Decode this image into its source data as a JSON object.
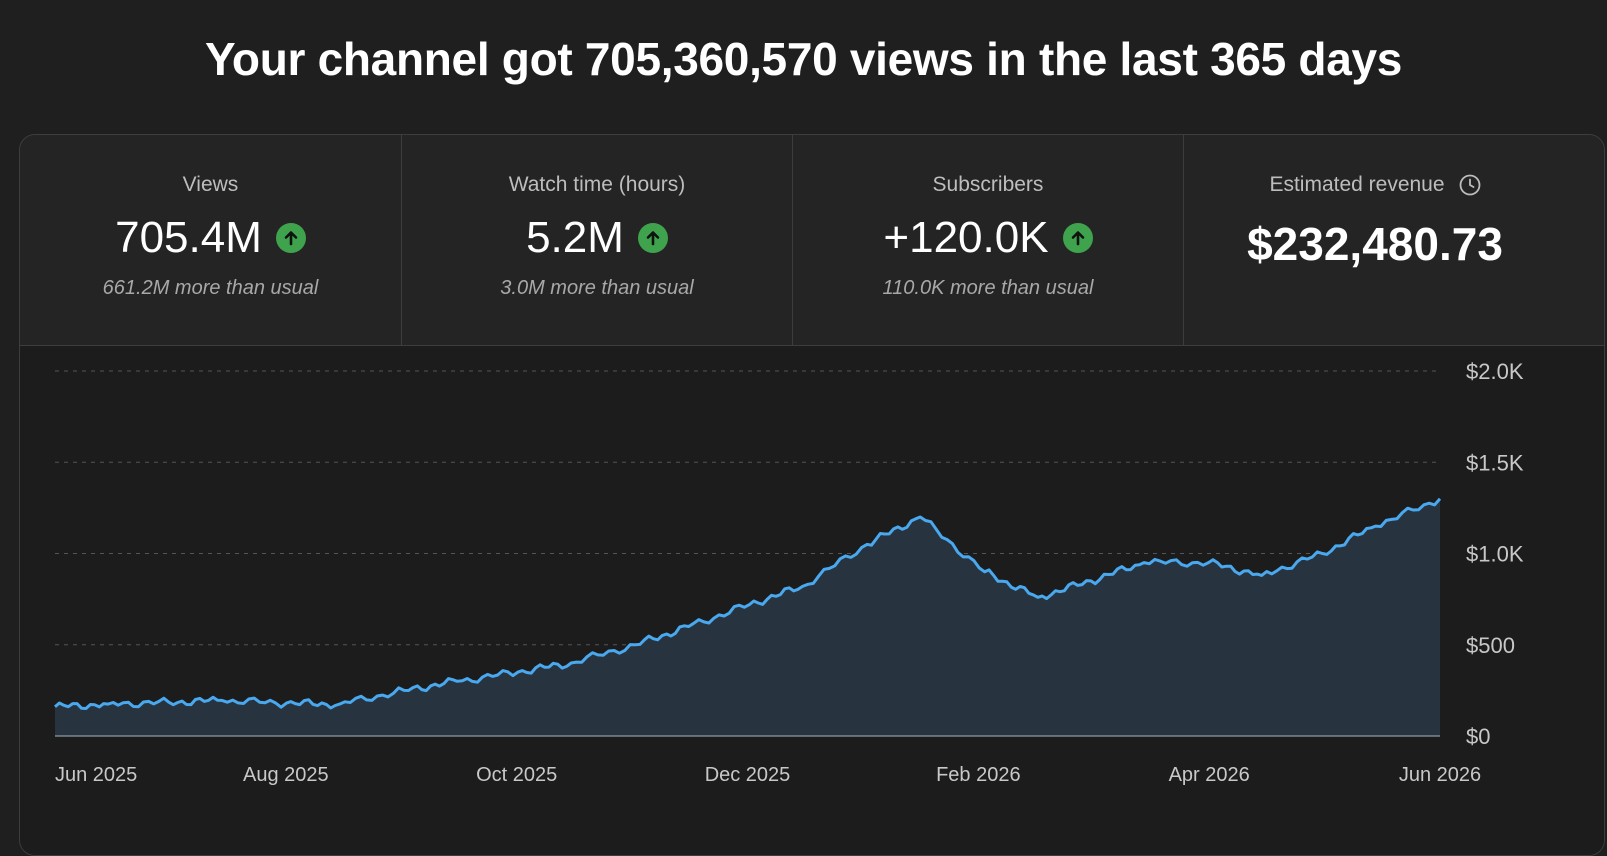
{
  "headline": "Your channel got 705,360,570 views in the last 365 days",
  "metrics": [
    {
      "label": "Views",
      "value": "705.4M",
      "sub": "661.2M more than usual",
      "trend": "up"
    },
    {
      "label": "Watch time (hours)",
      "value": "5.2M",
      "sub": "3.0M more than usual",
      "trend": "up"
    },
    {
      "label": "Subscribers",
      "value": "+120.0K",
      "sub": "110.0K more than usual",
      "trend": "up"
    },
    {
      "label": "Estimated revenue",
      "value": "$232,480.73",
      "icon": "clock-icon"
    }
  ],
  "colors": {
    "background": "#1f1f1f",
    "card": "#282828",
    "line": "#4aa8ee",
    "area": "#273440",
    "trend_up": "#3fa34d"
  },
  "chart_data": {
    "type": "area",
    "title": "",
    "xlabel": "",
    "ylabel": "",
    "x_tick_labels": [
      "Jun 2025",
      "Aug 2025",
      "Oct 2025",
      "Dec 2025",
      "Feb 2026",
      "Apr 2026",
      "Jun 2026"
    ],
    "y_tick_labels": [
      "$0",
      "$500",
      "$1.0K",
      "$1.5K",
      "$2.0K"
    ],
    "y_ticks": [
      0,
      500,
      1000,
      1500,
      2000
    ],
    "ylim": [
      0,
      2000
    ],
    "grid": true,
    "y_axis_position": "right",
    "x": [
      "2025-06-01",
      "2025-06-15",
      "2025-07-01",
      "2025-07-15",
      "2025-08-01",
      "2025-08-15",
      "2025-09-01",
      "2025-09-15",
      "2025-10-01",
      "2025-10-15",
      "2025-11-01",
      "2025-11-15",
      "2025-12-01",
      "2025-12-15",
      "2026-01-01",
      "2026-01-15",
      "2026-02-01",
      "2026-02-15",
      "2026-03-01",
      "2026-03-15",
      "2026-04-01",
      "2026-04-15",
      "2026-05-01",
      "2026-05-15",
      "2026-06-01"
    ],
    "series": [
      {
        "values": [
          160,
          175,
          185,
          195,
          180,
          175,
          250,
          300,
          350,
          400,
          500,
          600,
          720,
          820,
          1050,
          1200,
          900,
          760,
          850,
          950,
          950,
          880,
          1000,
          1150,
          1300
        ]
      }
    ]
  }
}
